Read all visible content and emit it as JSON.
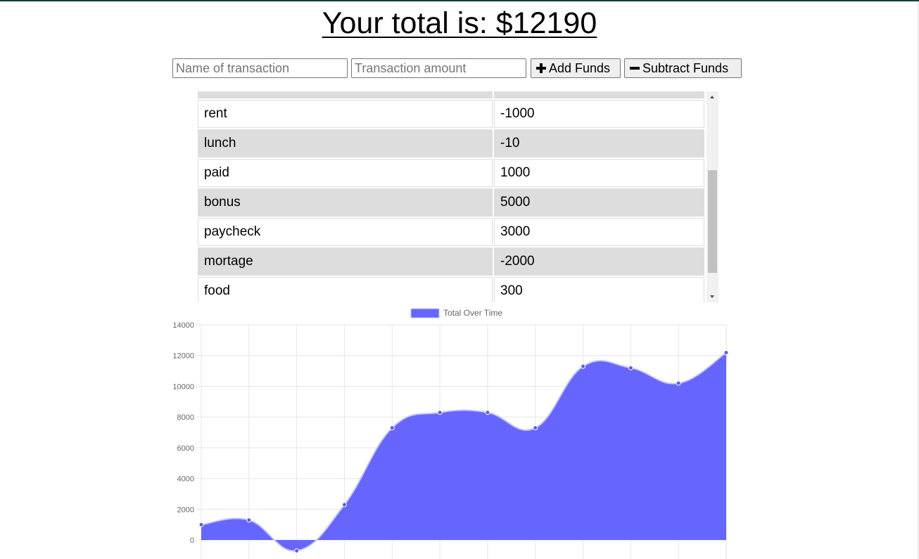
{
  "header": {
    "total_label": "Your total is: $",
    "total_value": "12190"
  },
  "form": {
    "name_placeholder": "Name of transaction",
    "amount_placeholder": "Transaction amount",
    "add_label": "Add Funds",
    "subtract_label": "Subtract Funds"
  },
  "transactions": [
    {
      "name": "rent",
      "value": "-1000"
    },
    {
      "name": "lunch",
      "value": "-10"
    },
    {
      "name": "paid",
      "value": "1000"
    },
    {
      "name": "bonus",
      "value": "5000"
    },
    {
      "name": "paycheck",
      "value": "3000"
    },
    {
      "name": "mortage",
      "value": "-2000"
    },
    {
      "name": "food",
      "value": "300"
    }
  ],
  "chart_data": {
    "type": "area",
    "legend": {
      "label": "Total Over Time",
      "placement": "top-center"
    },
    "series": [
      {
        "name": "Total Over Time",
        "values": [
          1000,
          1300,
          -700,
          2300,
          7300,
          8300,
          8300,
          7300,
          11300,
          11200,
          10200,
          12190
        ]
      }
    ],
    "ylim": [
      0,
      14000
    ],
    "y_ticks": [
      "14000",
      "12000",
      "10000",
      "8000",
      "6000",
      "4000",
      "2000",
      "0"
    ],
    "grid": true,
    "colors": {
      "fill": "#6666ff",
      "line": "#c8c8ff",
      "point": "#5a5af0",
      "grid": "#e6e6e6"
    }
  }
}
